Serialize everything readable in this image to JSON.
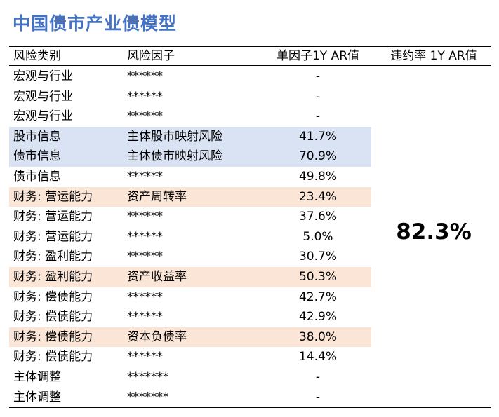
{
  "title": "中国债市产业债模型",
  "headers": {
    "category": "风险类别",
    "factor": "风险因子",
    "single_ar": "单因子1Y AR值",
    "default_ar": "违约率 1Y AR值"
  },
  "rows": [
    {
      "category": "宏观与行业",
      "factor": "******",
      "ar": "-",
      "highlight": "none"
    },
    {
      "category": "宏观与行业",
      "factor": "******",
      "ar": "-",
      "highlight": "none"
    },
    {
      "category": "宏观与行业",
      "factor": "******",
      "ar": "-",
      "highlight": "none"
    },
    {
      "category": "股市信息",
      "factor": "主体股市映射风险",
      "ar": "41.7%",
      "highlight": "blue"
    },
    {
      "category": "债市信息",
      "factor": "主体债市映射风险",
      "ar": "70.9%",
      "highlight": "blue"
    },
    {
      "category": "债市信息",
      "factor": "******",
      "ar": "49.8%",
      "highlight": "none"
    },
    {
      "category": "财务: 营运能力",
      "factor": "资产周转率",
      "ar": "23.4%",
      "highlight": "orange"
    },
    {
      "category": "财务: 营运能力",
      "factor": "******",
      "ar": "37.6%",
      "highlight": "none"
    },
    {
      "category": "财务: 营运能力",
      "factor": "******",
      "ar": "5.0%",
      "highlight": "none"
    },
    {
      "category": "财务: 盈利能力",
      "factor": "******",
      "ar": "30.7%",
      "highlight": "none"
    },
    {
      "category": "财务: 盈利能力",
      "factor": "资产收益率",
      "ar": "50.3%",
      "highlight": "orange"
    },
    {
      "category": "财务: 偿债能力",
      "factor": "******",
      "ar": "42.7%",
      "highlight": "none"
    },
    {
      "category": "财务: 偿债能力",
      "factor": "******",
      "ar": "42.9%",
      "highlight": "none"
    },
    {
      "category": "财务: 偿债能力",
      "factor": "资本负债率",
      "ar": "38.0%",
      "highlight": "orange"
    },
    {
      "category": "财务: 偿债能力",
      "factor": "******",
      "ar": "14.4%",
      "highlight": "none"
    },
    {
      "category": "主体调整",
      "factor": "*******",
      "ar": "-",
      "highlight": "none"
    },
    {
      "category": "主体调整",
      "factor": "*******",
      "ar": "-",
      "highlight": "none"
    }
  ],
  "default_ar_value": "82.3%",
  "colors": {
    "title": "#4472c4",
    "highlight_blue": "#dae3f3",
    "highlight_orange": "#fbe5d6"
  }
}
